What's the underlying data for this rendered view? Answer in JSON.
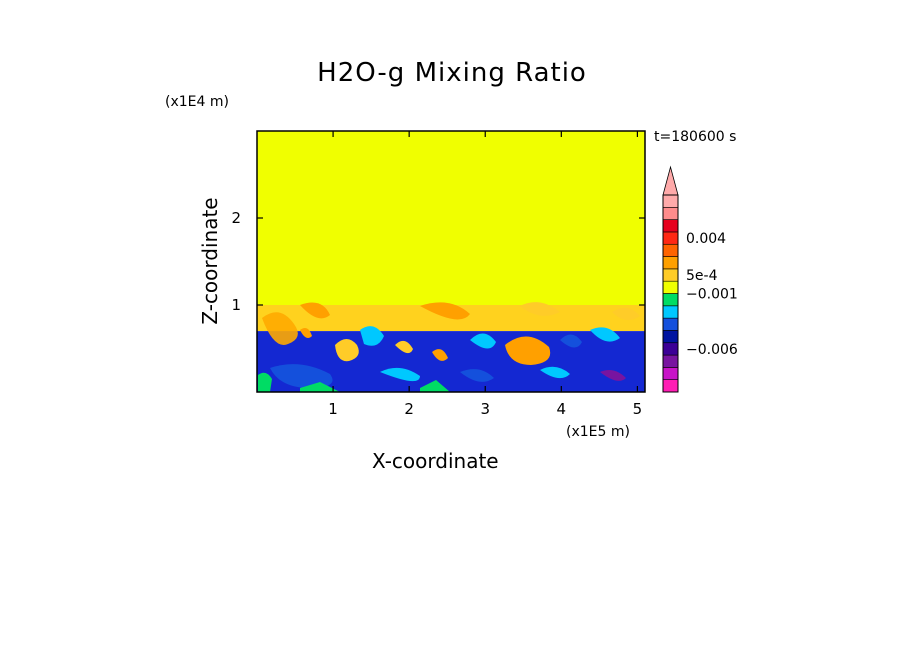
{
  "chart_data": {
    "type": "heatmap",
    "title": "H2O-g Mixing Ratio",
    "xlabel": "X-coordinate",
    "ylabel": "Z-coordinate",
    "x_unit": "(x1E5 m)",
    "y_unit": "(x1E4 m)",
    "time_label": "t=180600 s",
    "xlim": [
      0,
      5.1
    ],
    "ylim": [
      0,
      3.0
    ],
    "x_ticks": [
      1,
      2,
      3,
      4,
      5
    ],
    "y_ticks": [
      1,
      2
    ],
    "x_tick_labels": [
      "1",
      "2",
      "3",
      "4",
      "5"
    ],
    "y_tick_labels": [
      "1",
      "2"
    ],
    "regions": [
      {
        "level": "upper",
        "z_range": [
          1.0,
          3.0
        ],
        "color": "#f0ff00"
      },
      {
        "level": "mid",
        "z_range": [
          0.7,
          1.0
        ],
        "color": "#ffd21e"
      },
      {
        "level": "lower",
        "z_range": [
          0.0,
          0.7
        ],
        "color": "#1428d2"
      }
    ],
    "colorbar": {
      "colors": [
        "#ff1eb4",
        "#c814c8",
        "#7814a0",
        "#3c0096",
        "#0014a0",
        "#1450dc",
        "#00c8ff",
        "#00dc64",
        "#f0ff00",
        "#ffcc28",
        "#ffa000",
        "#ff6400",
        "#ff2814",
        "#e6001e",
        "#ff8c8c",
        "#ffaaaa"
      ],
      "labels": [
        {
          "text": "0.004",
          "value_index": 12.5
        },
        {
          "text": "5e-4",
          "value_index": 9.5
        },
        {
          "text": "−0.001",
          "value_index": 8.0
        },
        {
          "text": "−0.006",
          "value_index": 3.5
        }
      ]
    }
  }
}
